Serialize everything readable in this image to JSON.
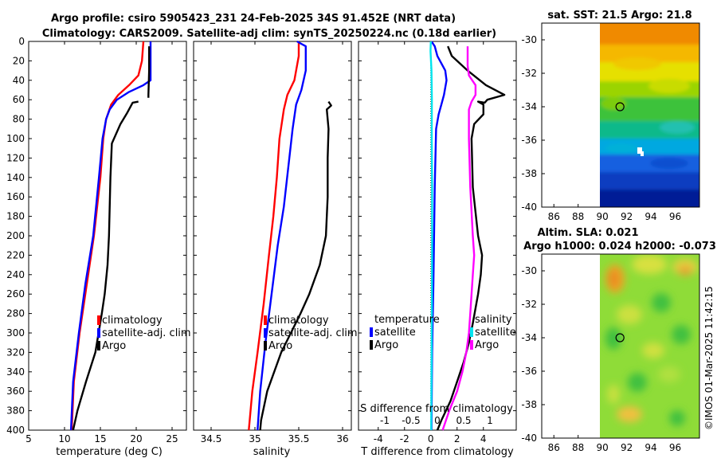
{
  "title_line1": "Argo profile: csiro 5905423_231 24-Feb-2025 34S 91.452E (NRT data)",
  "title_line2": "Climatology: CARS2009. Satellite-adj clim: synTS_20250224.nc (0.18d earlier)",
  "sst_title": "sat. SST: 21.5 Argo: 21.8",
  "sla_title1": "Altim. SLA: 0.021",
  "sla_title2": "Argo h1000: 0.024 h2000: -0.073",
  "watermark": "©IMOS 01-Mar-2025 11:42:15",
  "colors": {
    "climatology": "#ff0000",
    "satellite": "#0000ff",
    "argo": "#000000",
    "satellite_s": "#00e5ee",
    "argo_s": "#ff00ff"
  },
  "chart_data": [
    {
      "type": "line",
      "xlabel": "temperature (deg C)",
      "ylabel": "",
      "xlim": [
        5,
        27
      ],
      "ylim": [
        400,
        0
      ],
      "xticks": [
        5,
        10,
        15,
        20,
        25
      ],
      "yticks": [
        0,
        20,
        40,
        60,
        80,
        100,
        120,
        140,
        160,
        180,
        200,
        220,
        240,
        260,
        280,
        300,
        320,
        340,
        360,
        380,
        400
      ],
      "legend": [
        "climatology",
        "satellite-adj. clim",
        "Argo"
      ],
      "series": [
        {
          "name": "climatology",
          "color": "#ff0000",
          "points": [
            [
              21,
              0
            ],
            [
              20.8,
              20
            ],
            [
              20.3,
              35
            ],
            [
              19,
              45
            ],
            [
              17.5,
              55
            ],
            [
              16.5,
              65
            ],
            [
              15.8,
              80
            ],
            [
              15.4,
              100
            ],
            [
              15,
              140
            ],
            [
              14.1,
              200
            ],
            [
              13.1,
              250
            ],
            [
              12.1,
              300
            ],
            [
              11.3,
              350
            ],
            [
              11,
              400
            ]
          ]
        },
        {
          "name": "satellite-adj. clim",
          "color": "#0000ff",
          "points": [
            [
              22,
              0
            ],
            [
              22,
              40
            ],
            [
              21,
              45
            ],
            [
              19,
              52
            ],
            [
              17.3,
              60
            ],
            [
              16.3,
              70
            ],
            [
              15.8,
              80
            ],
            [
              15.3,
              100
            ],
            [
              14.8,
              140
            ],
            [
              14,
              200
            ],
            [
              12.9,
              250
            ],
            [
              12,
              300
            ],
            [
              11.2,
              350
            ],
            [
              10.9,
              400
            ]
          ]
        },
        {
          "name": "Argo",
          "color": "#000000",
          "points": [
            [
              21.8,
              5
            ],
            [
              21.8,
              30
            ],
            [
              21.7,
              55
            ],
            [
              21.7,
              58
            ]
          ],
          "points2": [
            [
              20.3,
              62
            ],
            [
              19.5,
              63
            ],
            [
              18.7,
              74
            ],
            [
              17.8,
              85
            ],
            [
              16.6,
              105
            ],
            [
              16.4,
              140
            ],
            [
              16.2,
              200
            ],
            [
              16,
              230
            ],
            [
              15.6,
              260
            ],
            [
              15.2,
              280
            ],
            [
              14.3,
              320
            ],
            [
              13,
              350
            ],
            [
              11.8,
              380
            ],
            [
              11.2,
              400
            ]
          ]
        }
      ]
    },
    {
      "type": "line",
      "xlabel": "salinity",
      "ylabel": "",
      "xlim": [
        34.3,
        36.1
      ],
      "ylim": [
        400,
        0
      ],
      "xticks": [
        34.5,
        35,
        35.5,
        36
      ],
      "legend": [
        "climatology",
        "satellite-adj. clim",
        "Argo"
      ],
      "series": [
        {
          "name": "climatology",
          "color": "#ff0000",
          "points": [
            [
              35.5,
              0
            ],
            [
              35.5,
              15
            ],
            [
              35.45,
              40
            ],
            [
              35.37,
              55
            ],
            [
              35.33,
              70
            ],
            [
              35.28,
              100
            ],
            [
              35.25,
              140
            ],
            [
              35.21,
              180
            ],
            [
              35.16,
              220
            ],
            [
              35.1,
              270
            ],
            [
              35.03,
              320
            ],
            [
              34.97,
              360
            ],
            [
              34.93,
              400
            ]
          ]
        },
        {
          "name": "satellite-adj. clim",
          "color": "#0000ff",
          "points": [
            [
              35.48,
              0
            ],
            [
              35.58,
              5
            ],
            [
              35.58,
              30
            ],
            [
              35.53,
              50
            ],
            [
              35.47,
              65
            ],
            [
              35.43,
              90
            ],
            [
              35.38,
              130
            ],
            [
              35.33,
              170
            ],
            [
              35.26,
              210
            ],
            [
              35.19,
              260
            ],
            [
              35.12,
              310
            ],
            [
              35.06,
              360
            ],
            [
              35.03,
              400
            ]
          ]
        },
        {
          "name": "Argo",
          "color": "#000000",
          "points": [
            [
              35.84,
              62
            ],
            [
              35.87,
              66
            ],
            [
              35.82,
              70
            ],
            [
              35.84,
              90
            ],
            [
              35.83,
              120
            ],
            [
              35.83,
              160
            ],
            [
              35.81,
              200
            ],
            [
              35.74,
              230
            ],
            [
              35.62,
              260
            ],
            [
              35.52,
              280
            ],
            [
              35.3,
              320
            ],
            [
              35.14,
              360
            ],
            [
              35.07,
              390
            ],
            [
              35.06,
              400
            ]
          ]
        }
      ]
    },
    {
      "type": "line",
      "xlabel": "T difference from climatology",
      "xlabel_top": "S difference from climatology",
      "xlim": [
        -5.5,
        6.5
      ],
      "ylim": [
        400,
        0
      ],
      "xticks": [
        -4,
        -2,
        0,
        2,
        4
      ],
      "xticks_top": [
        -1,
        -0.5,
        0,
        0.5,
        1
      ],
      "legend_left_title": "temperature",
      "legend_right_title": "salinity",
      "legend_left": [
        "satellite",
        "Argo"
      ],
      "legend_right": [
        "satellite",
        "Argo"
      ],
      "series": [
        {
          "name": "T satellite",
          "color": "#0000ff",
          "points": [
            [
              0.05,
              0
            ],
            [
              0.3,
              5
            ],
            [
              0.5,
              15
            ],
            [
              1.1,
              30
            ],
            [
              1.2,
              40
            ],
            [
              1,
              55
            ],
            [
              0.8,
              65
            ],
            [
              0.6,
              75
            ],
            [
              0.4,
              90
            ],
            [
              0.3,
              150
            ],
            [
              0.2,
              250
            ],
            [
              0.1,
              320
            ],
            [
              0.05,
              400
            ]
          ]
        },
        {
          "name": "T Argo",
          "color": "#000000",
          "points": [
            [
              1.3,
              5
            ],
            [
              1.6,
              15
            ],
            [
              2.8,
              30
            ],
            [
              4.2,
              45
            ],
            [
              5.6,
              55
            ],
            [
              4.3,
              60
            ],
            [
              4.1,
              63
            ],
            [
              3.6,
              62
            ],
            [
              4,
              65
            ],
            [
              4,
              75
            ],
            [
              3.3,
              85
            ],
            [
              3.1,
              100
            ],
            [
              3.2,
              150
            ],
            [
              3.6,
              200
            ],
            [
              3.9,
              220
            ],
            [
              3.8,
              240
            ],
            [
              3.6,
              260
            ],
            [
              3.2,
              290
            ],
            [
              2.9,
              310
            ],
            [
              2.5,
              330
            ],
            [
              2,
              350
            ],
            [
              1.5,
              370
            ],
            [
              0.8,
              390
            ],
            [
              0.5,
              400
            ]
          ]
        },
        {
          "name": "S satellite",
          "color": "#00e5ee",
          "points": [
            [
              0,
              0
            ],
            [
              -0.02,
              10
            ],
            [
              0.05,
              30
            ],
            [
              0.08,
              60
            ],
            [
              0.07,
              100
            ],
            [
              0.1,
              150
            ],
            [
              0.1,
              200
            ],
            [
              0.09,
              260
            ],
            [
              0.07,
              300
            ],
            [
              0.05,
              350
            ],
            [
              0.03,
              400
            ]
          ]
        },
        {
          "name": "S Argo",
          "color": "#ff00ff",
          "points": [
            [
              2.8,
              5
            ],
            [
              2.8,
              25
            ],
            [
              2.9,
              35
            ],
            [
              3.4,
              45
            ],
            [
              3.4,
              55
            ],
            [
              3.1,
              62
            ],
            [
              2.9,
              70
            ],
            [
              2.9,
              100
            ],
            [
              3,
              150
            ],
            [
              3.2,
              200
            ],
            [
              3.3,
              220
            ],
            [
              3.2,
              240
            ],
            [
              3.1,
              260
            ],
            [
              3,
              280
            ],
            [
              2.9,
              300
            ],
            [
              2.7,
              320
            ],
            [
              2.4,
              340
            ],
            [
              2,
              360
            ],
            [
              1.4,
              380
            ],
            [
              0.9,
              400
            ]
          ]
        }
      ]
    },
    {
      "type": "heatmap",
      "title": "sat. SST: 21.5 Argo: 21.8",
      "xlim": [
        85,
        98
      ],
      "ylim": [
        -40,
        -29
      ],
      "xticks": [
        86,
        88,
        90,
        92,
        94,
        96
      ],
      "yticks": [
        -30,
        -32,
        -34,
        -36,
        -38,
        -40
      ],
      "data_x_start": 90,
      "argo_position": [
        91.45,
        -34
      ]
    },
    {
      "type": "heatmap",
      "title": "Altim. SLA: 0.021",
      "xlim": [
        85,
        98
      ],
      "ylim": [
        -40,
        -29
      ],
      "xticks": [
        86,
        88,
        90,
        92,
        94,
        96
      ],
      "yticks": [
        -30,
        -32,
        -34,
        -36,
        -38,
        -40
      ],
      "data_x_start": 90,
      "argo_position": [
        91.45,
        -34
      ]
    }
  ]
}
